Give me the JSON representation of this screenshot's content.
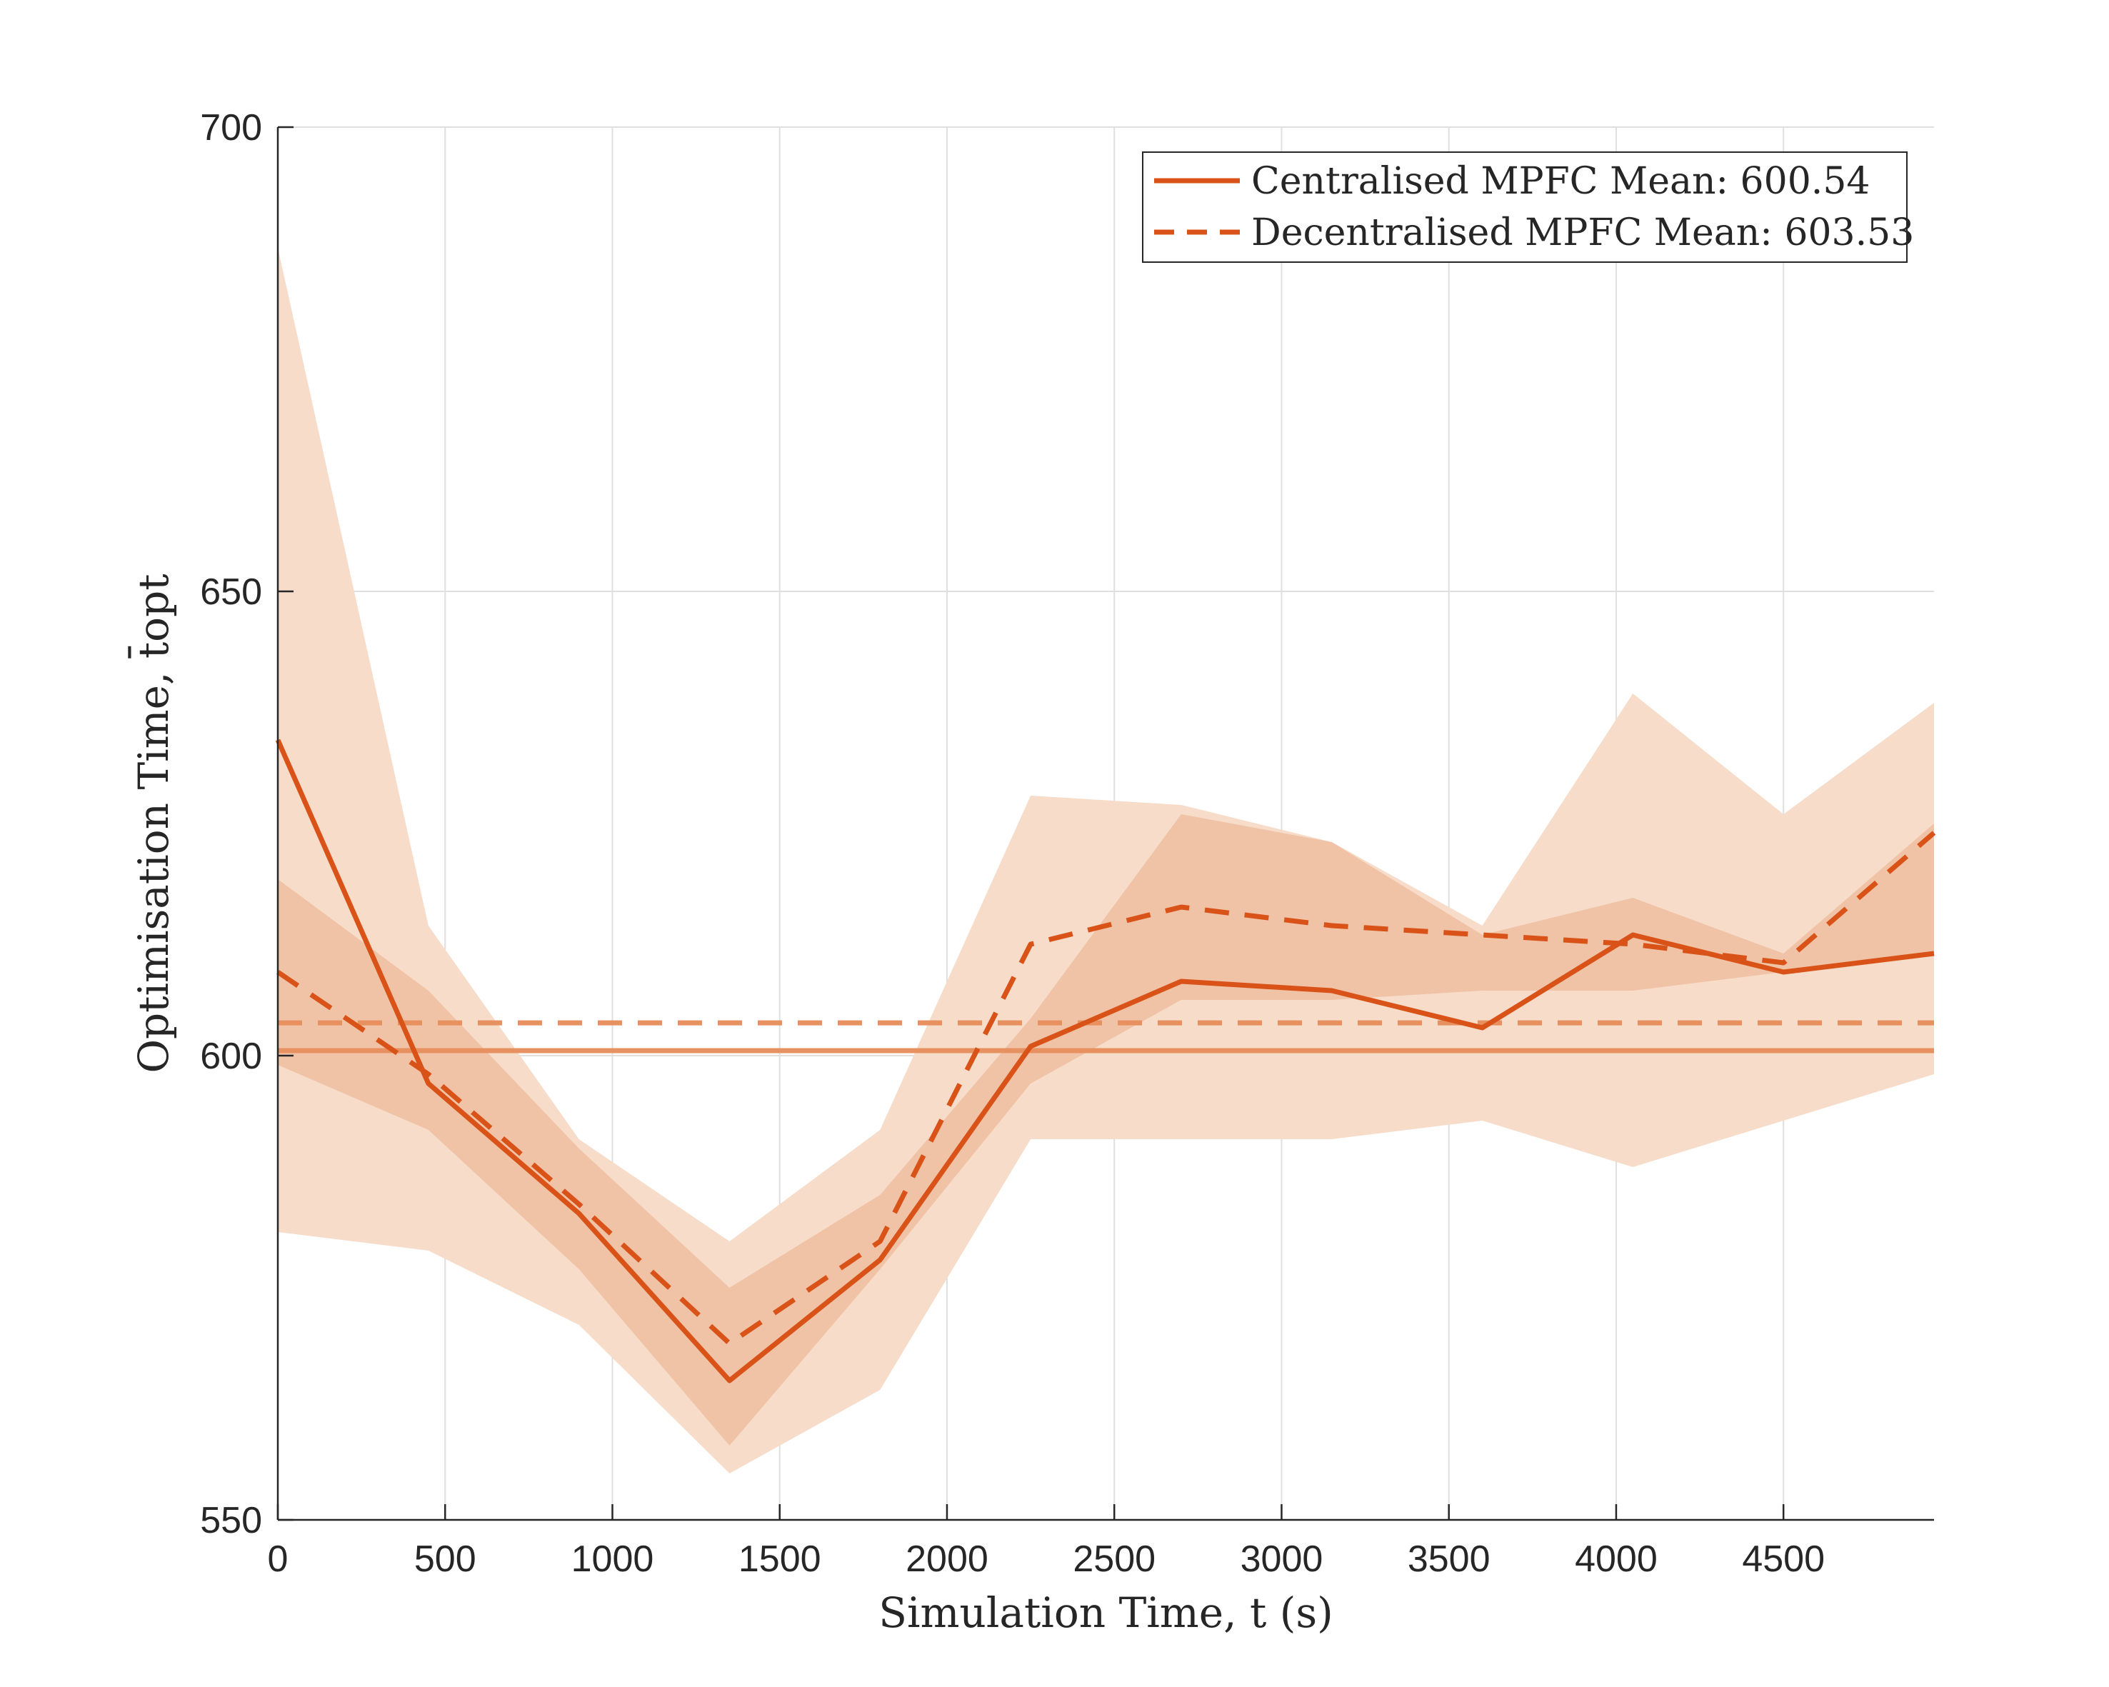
{
  "chart_data": {
    "type": "line",
    "title": "",
    "xlabel": "Simulation Time, t (s)",
    "ylabel": "Optimisation Time, t̄opt",
    "xlim": [
      0,
      4950
    ],
    "ylim": [
      550,
      700
    ],
    "xticks": [
      0,
      500,
      1000,
      1500,
      2000,
      2500,
      3000,
      3500,
      4000,
      4500
    ],
    "yticks": [
      550,
      600,
      650,
      700
    ],
    "grid": true,
    "legend_position": "top-right",
    "x": [
      0,
      450,
      900,
      1350,
      1800,
      2250,
      2700,
      3150,
      3600,
      4050,
      4500,
      4950
    ],
    "series": [
      {
        "name": "Centralised MPFC Mean: 600.54",
        "style": "solid",
        "values": [
          634,
          597,
          583,
          565,
          578,
          601,
          608,
          607,
          603,
          613,
          609,
          611
        ],
        "band_lower": [
          581,
          579,
          571,
          555,
          564,
          591,
          591,
          591,
          593,
          588,
          593,
          598
        ],
        "band_upper": [
          687,
          614,
          591,
          580,
          592,
          628,
          627,
          623,
          614,
          639,
          626,
          638
        ],
        "mean": 600.54
      },
      {
        "name": "Decentralised MPFC Mean: 603.53",
        "style": "dashed",
        "values": [
          609,
          598,
          584,
          569,
          580,
          612,
          616,
          614,
          613,
          612,
          610,
          624
        ],
        "band_lower": [
          599,
          592,
          577,
          558,
          577,
          597,
          606,
          606,
          607,
          607,
          609,
          611
        ],
        "band_upper": [
          619,
          607,
          590,
          575,
          585,
          604,
          626,
          623,
          613,
          617,
          611,
          625
        ],
        "mean": 603.53
      }
    ],
    "colors": {
      "line": "#d95319",
      "mean_line": "#e6915f",
      "band": "#f6dcc9",
      "band_overlap": "#eebb9b",
      "axis": "#262626",
      "grid": "#dfdfdf"
    }
  }
}
